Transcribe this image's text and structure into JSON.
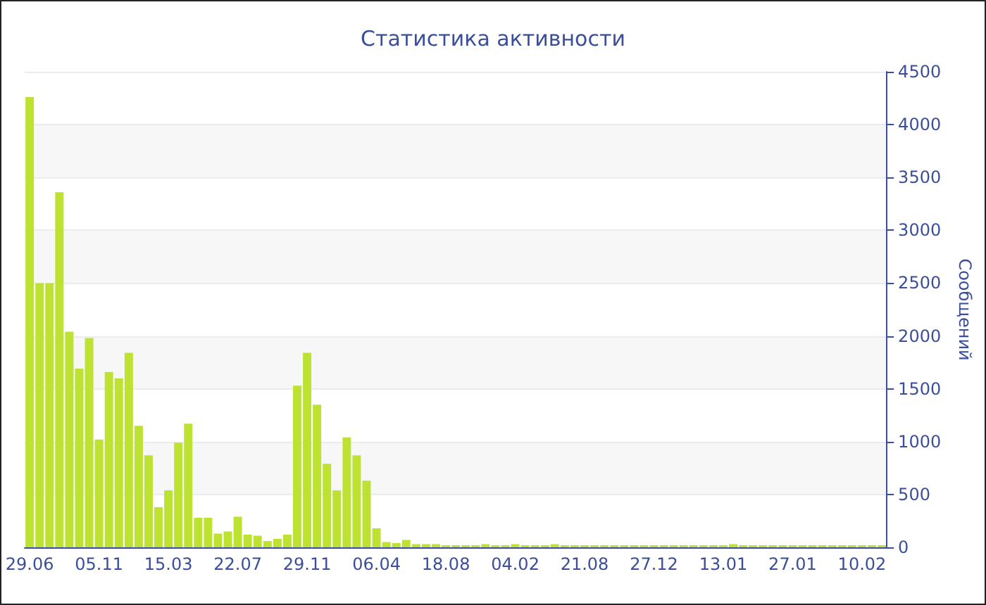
{
  "chart_data": {
    "type": "bar",
    "title": "Статистика активности",
    "ylabel": "Сообщений",
    "categories": [
      "29.06",
      null,
      null,
      null,
      null,
      null,
      null,
      "05.11",
      null,
      null,
      null,
      null,
      null,
      null,
      "15.03",
      null,
      null,
      null,
      null,
      null,
      null,
      "22.07",
      null,
      null,
      null,
      null,
      null,
      null,
      "29.11",
      null,
      null,
      null,
      null,
      null,
      null,
      "06.04",
      null,
      null,
      null,
      null,
      null,
      null,
      "18.08",
      null,
      null,
      null,
      null,
      null,
      null,
      "04.02",
      null,
      null,
      null,
      null,
      null,
      null,
      "21.08",
      null,
      null,
      null,
      null,
      null,
      null,
      "27.12",
      null,
      null,
      null,
      null,
      null,
      null,
      "13.01",
      null,
      null,
      null,
      null,
      null,
      null,
      "27.01",
      null,
      null,
      null,
      null,
      null,
      null,
      "10.02",
      null,
      null
    ],
    "values": [
      4260,
      2500,
      2500,
      3360,
      2040,
      1690,
      1980,
      1020,
      1660,
      1600,
      1840,
      1150,
      870,
      380,
      540,
      990,
      1170,
      280,
      280,
      130,
      150,
      290,
      120,
      110,
      60,
      80,
      120,
      1530,
      1840,
      1350,
      790,
      540,
      1040,
      870,
      630,
      180,
      50,
      40,
      70,
      30,
      30,
      30,
      20,
      20,
      20,
      20,
      30,
      20,
      20,
      30,
      20,
      20,
      20,
      30,
      20,
      20,
      20,
      20,
      20,
      20,
      20,
      20,
      20,
      20,
      20,
      20,
      20,
      20,
      20,
      20,
      20,
      30,
      20,
      20,
      20,
      20,
      20,
      20,
      20,
      20,
      20,
      20,
      20,
      20,
      20,
      20,
      20
    ],
    "color": "#bde232",
    "ylim": [
      0,
      4500
    ],
    "yticks": [
      0,
      500,
      1000,
      1500,
      2000,
      2500,
      3000,
      3500,
      4000,
      4500
    ],
    "grid": "y"
  }
}
